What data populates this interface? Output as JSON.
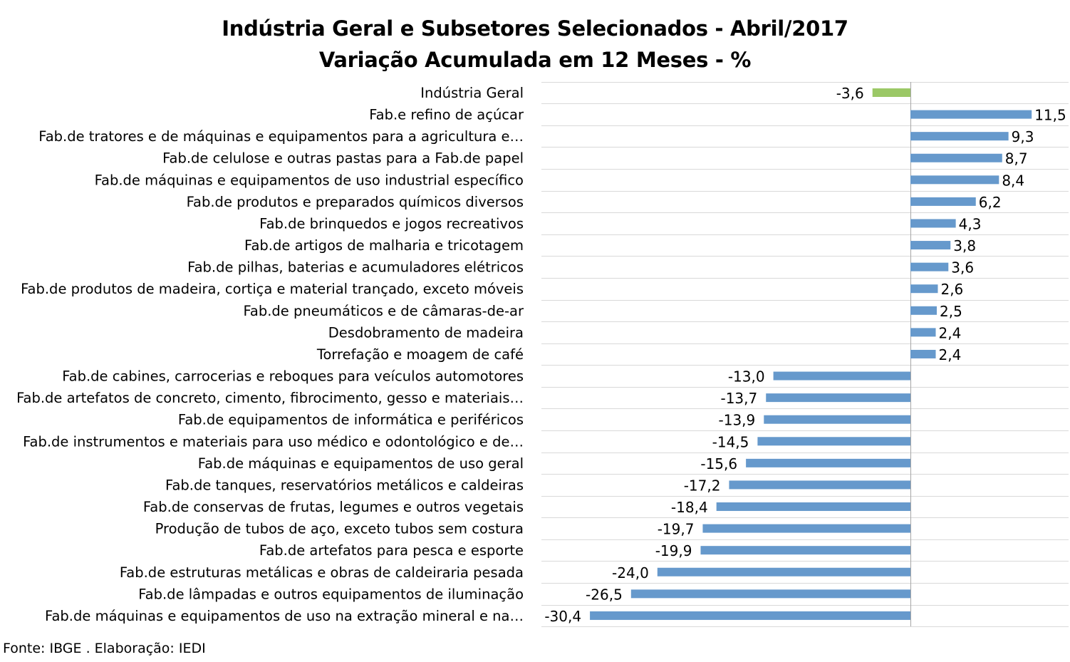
{
  "chart_data": {
    "type": "bar",
    "orientation": "horizontal",
    "title": "Indústria Geral e Subsetores Selecionados - Abril/2017",
    "subtitle": "Variação Acumulada em 12 Meses - %",
    "categories": [
      "Indústria Geral",
      "Fab.e refino de açúcar",
      "Fab.de tratores e de máquinas e equipamentos para a agricultura e…",
      "Fab.de celulose e outras pastas para a Fab.de papel",
      "Fab.de máquinas e equipamentos de uso industrial específico",
      "Fab.de produtos e preparados químicos diversos",
      "Fab.de brinquedos e jogos recreativos",
      "Fab.de artigos de malharia e tricotagem",
      "Fab.de pilhas, baterias e acumuladores elétricos",
      "Fab.de produtos de madeira, cortiça e material trançado, exceto móveis",
      "Fab.de pneumáticos e de câmaras-de-ar",
      "Desdobramento de madeira",
      "Torrefação e moagem de café",
      "Fab.de cabines, carrocerias e reboques para veículos automotores",
      "Fab.de artefatos de concreto, cimento, fibrocimento, gesso e materiais…",
      "Fab.de equipamentos de informática e periféricos",
      "Fab.de instrumentos e materiais para uso médico e odontológico e de…",
      "Fab.de máquinas e equipamentos de uso geral",
      "Fab.de tanques, reservatórios metálicos e caldeiras",
      "Fab.de conservas de frutas, legumes e outros vegetais",
      "Produção de tubos de aço, exceto tubos sem costura",
      "Fab.de artefatos para pesca e esporte",
      "Fab.de estruturas metálicas e obras de caldeiraria pesada",
      "Fab.de lâmpadas e outros equipamentos de iluminação",
      "Fab.de máquinas e equipamentos de uso na extração mineral e na…"
    ],
    "values": [
      -3.6,
      11.5,
      9.3,
      8.7,
      8.4,
      6.2,
      4.3,
      3.8,
      3.6,
      2.6,
      2.5,
      2.4,
      2.4,
      -13.0,
      -13.7,
      -13.9,
      -14.5,
      -15.6,
      -17.2,
      -18.4,
      -19.7,
      -19.9,
      -24.0,
      -26.5,
      -30.4
    ],
    "data_labels": [
      "-3,6",
      "11,5",
      "9,3",
      "8,7",
      "8,4",
      "6,2",
      "4,3",
      "3,8",
      "3,6",
      "2,6",
      "2,5",
      "2,4",
      "2,4",
      "-13,0",
      "-13,7",
      "-13,9",
      "-14,5",
      "-15,6",
      "-17,2",
      "-18,4",
      "-19,7",
      "-19,9",
      "-24,0",
      "-26,5",
      "-30,4"
    ],
    "highlight_index": 0,
    "colors": {
      "highlight": "#9BC866",
      "bars": "#6699CC",
      "gridlines": "#D9D9D9",
      "axis": "#A6A6A6"
    },
    "xlim": [
      -35,
      15
    ],
    "grid": true,
    "legend": "none"
  },
  "source": "Fonte: IBGE . Elaboração: IEDI"
}
